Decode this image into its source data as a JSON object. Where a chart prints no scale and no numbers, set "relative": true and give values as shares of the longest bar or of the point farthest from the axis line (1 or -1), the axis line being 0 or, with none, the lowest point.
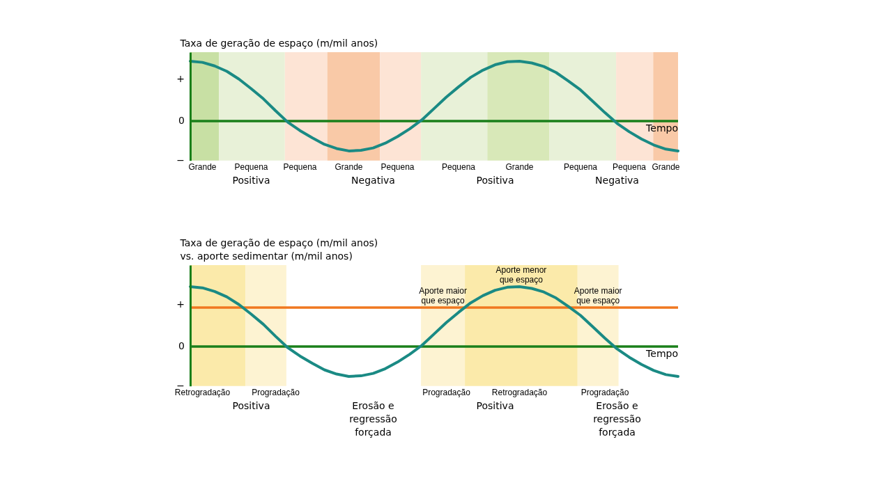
{
  "chart_data": [
    {
      "type": "line",
      "relative": true,
      "ylabel": "Taxa de geração de espaço (m/mil anos)",
      "xlabel": "Tempo",
      "tick_labels": "x",
      "categories": [
        null,
        "Grande",
        null,
        null,
        null,
        "Pequena",
        null,
        null,
        null,
        "Pequena",
        null,
        null,
        null,
        "Grande",
        null,
        null,
        null,
        "Pequena",
        null,
        null,
        null,
        null,
        "Pequena",
        null,
        null,
        null,
        null,
        "Grande",
        null,
        null,
        null,
        null,
        "Pequena",
        null,
        null,
        null,
        "Pequena",
        null,
        null,
        "Grande",
        null
      ],
      "series": [
        {
          "color": "#1a8a84",
          "values": [
            1.0,
            0.98,
            0.92,
            0.83,
            0.7,
            0.54,
            0.37,
            0.17,
            -0.02,
            -0.16,
            -0.28,
            -0.39,
            -0.46,
            -0.5,
            -0.49,
            -0.45,
            -0.37,
            -0.26,
            -0.13,
            0.02,
            0.21,
            0.4,
            0.57,
            0.73,
            0.85,
            0.94,
            0.99,
            1.0,
            0.97,
            0.91,
            0.81,
            0.67,
            0.52,
            0.33,
            0.14,
            -0.04,
            -0.18,
            -0.3,
            -0.4,
            -0.47,
            -0.5
          ]
        }
      ],
      "ref_lines": [
        {
          "axis": "y",
          "value": 0,
          "color": "#1a7f1a"
        }
      ],
      "annotations": [
        "+",
        "0",
        "−",
        "Positiva",
        "Negativa",
        "Positiva",
        "Negativa"
      ]
    },
    {
      "type": "line",
      "relative": true,
      "ylabel": "Taxa de geração de espaço (m/mil anos)\nvs. aporte sedimentar (m/mil anos)",
      "xlabel": "Tempo",
      "tick_labels": "x",
      "categories": [
        null,
        "Retrogradação",
        null,
        null,
        null,
        null,
        null,
        "Progradação",
        null,
        null,
        null,
        null,
        null,
        null,
        null,
        null,
        null,
        null,
        null,
        null,
        null,
        "Progradação",
        null,
        null,
        null,
        null,
        null,
        "Retrogradação",
        null,
        null,
        null,
        null,
        null,
        null,
        "Progradação",
        null,
        null,
        null,
        null,
        null,
        null
      ],
      "series": [
        {
          "color": "#1a8a84",
          "values": [
            1.0,
            0.98,
            0.92,
            0.83,
            0.7,
            0.54,
            0.37,
            0.17,
            -0.02,
            -0.16,
            -0.28,
            -0.39,
            -0.46,
            -0.5,
            -0.49,
            -0.45,
            -0.37,
            -0.26,
            -0.13,
            0.02,
            0.21,
            0.4,
            0.57,
            0.73,
            0.85,
            0.94,
            0.99,
            1.0,
            0.97,
            0.91,
            0.81,
            0.67,
            0.52,
            0.33,
            0.14,
            -0.04,
            -0.18,
            -0.3,
            -0.4,
            -0.47,
            -0.5
          ]
        }
      ],
      "ref_lines": [
        {
          "axis": "y",
          "value": 0.65,
          "color": "#f07820"
        },
        {
          "axis": "y",
          "value": 0,
          "color": "#1a7f1a"
        }
      ],
      "annotations": [
        "+",
        "0",
        "−",
        "Aporte maior\nque espaço",
        "Aporte menor\nque espaço",
        "Aporte maior\nque espaço",
        "Positiva",
        "Erosão e\nregressão\nforçada",
        "Positiva",
        "Erosão e\nregressão\nforçada"
      ]
    }
  ]
}
